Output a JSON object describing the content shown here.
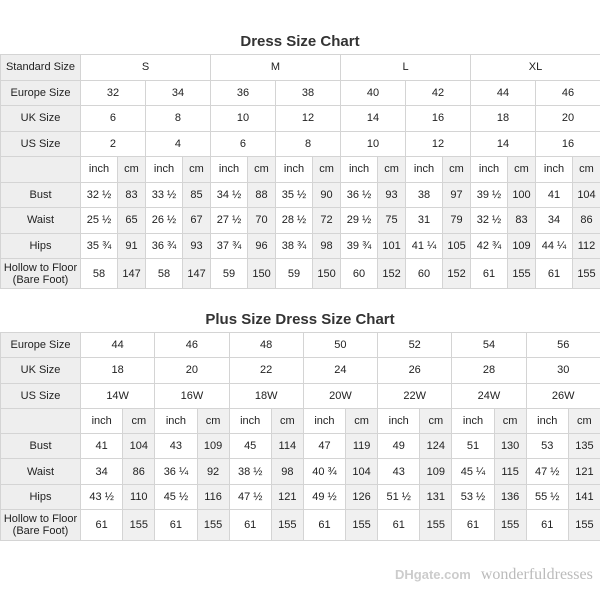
{
  "chart1": {
    "title": "Dress Size Chart",
    "standard_label": "Standard Size",
    "standard": [
      "S",
      "M",
      "L",
      "XL"
    ],
    "europe_label": "Europe Size",
    "europe": [
      "32",
      "34",
      "36",
      "38",
      "40",
      "42",
      "44",
      "46"
    ],
    "uk_label": "UK Size",
    "uk": [
      "6",
      "8",
      "10",
      "12",
      "14",
      "16",
      "18",
      "20"
    ],
    "us_label": "US Size",
    "us": [
      "2",
      "4",
      "6",
      "8",
      "10",
      "12",
      "14",
      "16"
    ],
    "unit_inch": "inch",
    "unit_cm": "cm",
    "rows": [
      {
        "label": "Bust",
        "values": [
          "32 ½",
          "83",
          "33 ½",
          "85",
          "34 ½",
          "88",
          "35 ½",
          "90",
          "36 ½",
          "93",
          "38",
          "97",
          "39 ½",
          "100",
          "41",
          "104"
        ]
      },
      {
        "label": "Waist",
        "values": [
          "25 ½",
          "65",
          "26 ½",
          "67",
          "27 ½",
          "70",
          "28 ½",
          "72",
          "29 ½",
          "75",
          "31",
          "79",
          "32 ½",
          "83",
          "34",
          "86"
        ]
      },
      {
        "label": "Hips",
        "values": [
          "35 ¾",
          "91",
          "36 ¾",
          "93",
          "37 ¾",
          "96",
          "38 ¾",
          "98",
          "39 ¾",
          "101",
          "41 ¼",
          "105",
          "42 ¾",
          "109",
          "44 ¼",
          "112"
        ]
      },
      {
        "label": "Hollow to Floor (Bare Foot)",
        "values": [
          "58",
          "147",
          "58",
          "147",
          "59",
          "150",
          "59",
          "150",
          "60",
          "152",
          "60",
          "152",
          "61",
          "155",
          "61",
          "155"
        ]
      }
    ]
  },
  "chart2": {
    "title": "Plus Size Dress Size Chart",
    "europe_label": "Europe Size",
    "europe": [
      "44",
      "46",
      "48",
      "50",
      "52",
      "54",
      "56"
    ],
    "uk_label": "UK Size",
    "uk": [
      "18",
      "20",
      "22",
      "24",
      "26",
      "28",
      "30"
    ],
    "us_label": "US Size",
    "us": [
      "14W",
      "16W",
      "18W",
      "20W",
      "22W",
      "24W",
      "26W"
    ],
    "unit_inch": "inch",
    "unit_cm": "cm",
    "rows": [
      {
        "label": "Bust",
        "values": [
          "41",
          "104",
          "43",
          "109",
          "45",
          "114",
          "47",
          "119",
          "49",
          "124",
          "51",
          "130",
          "53",
          "135"
        ]
      },
      {
        "label": "Waist",
        "values": [
          "34",
          "86",
          "36 ¼",
          "92",
          "38 ½",
          "98",
          "40 ¾",
          "104",
          "43",
          "109",
          "45 ¼",
          "115",
          "47 ½",
          "121"
        ]
      },
      {
        "label": "Hips",
        "values": [
          "43 ½",
          "110",
          "45 ½",
          "116",
          "47 ½",
          "121",
          "49 ½",
          "126",
          "51 ½",
          "131",
          "53 ½",
          "136",
          "55 ½",
          "141"
        ]
      },
      {
        "label": "Hollow to Floor (Bare Foot)",
        "values": [
          "61",
          "155",
          "61",
          "155",
          "61",
          "155",
          "61",
          "155",
          "61",
          "155",
          "61",
          "155",
          "61",
          "155"
        ]
      }
    ]
  },
  "watermark": {
    "logo": "DHgate.com",
    "text": "wonderfuldresses"
  }
}
